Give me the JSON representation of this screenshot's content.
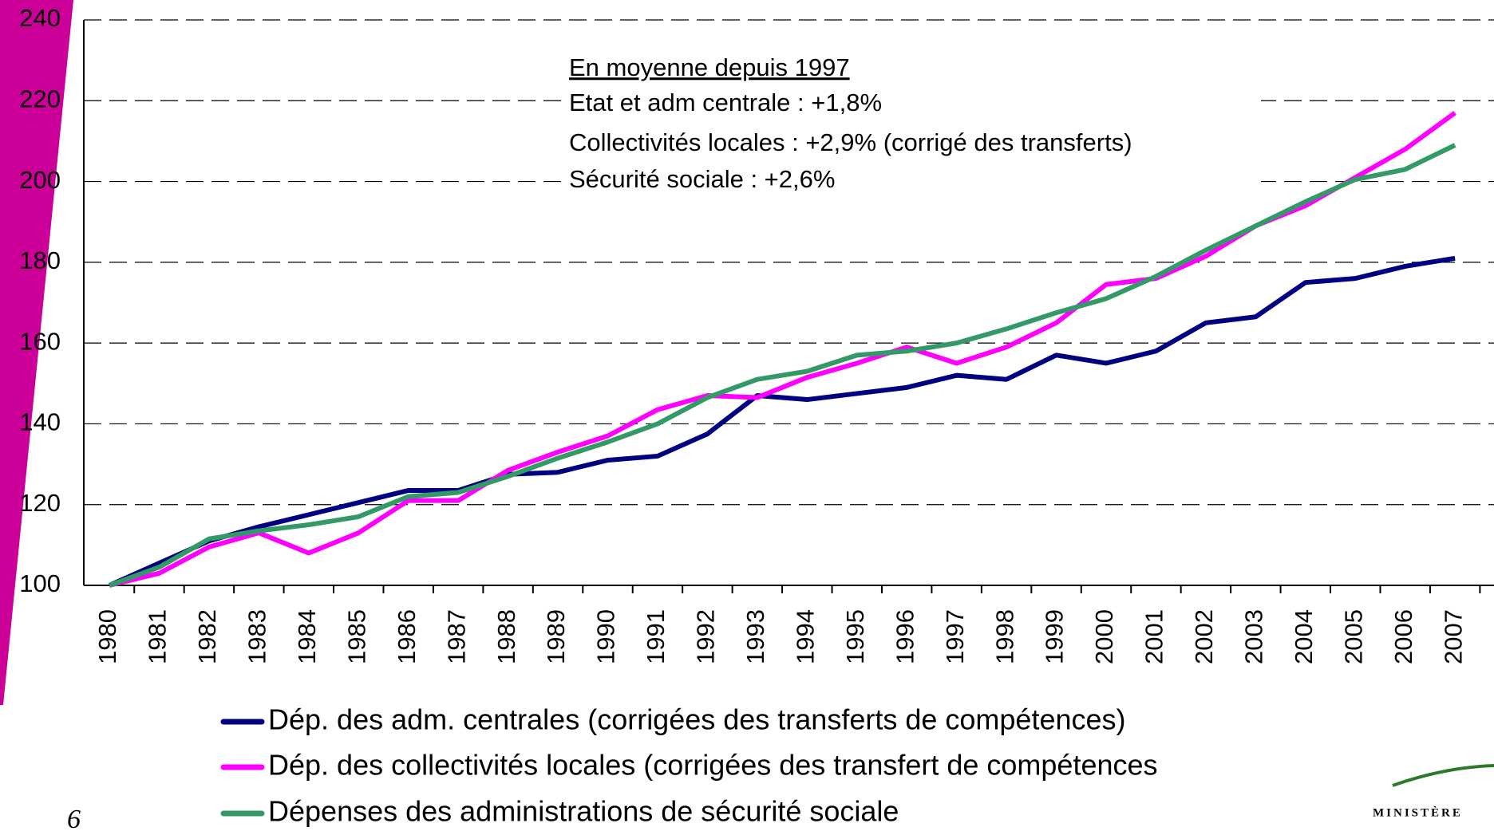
{
  "chart_data": {
    "type": "line",
    "annotations": [
      "En moyenne depuis 1997",
      "Etat et adm centrale : +1,8%",
      "Collectivités locales : +2,9% (corrigé des transferts)",
      "Sécurité sociale : +2,6%"
    ],
    "categories": [
      "1980",
      "1981",
      "1982",
      "1983",
      "1984",
      "1985",
      "1986",
      "1987",
      "1988",
      "1989",
      "1990",
      "1991",
      "1992",
      "1993",
      "1994",
      "1995",
      "1996",
      "1997",
      "1998",
      "1999",
      "2000",
      "2001",
      "2002",
      "2003",
      "2004",
      "2005",
      "2006",
      "2007"
    ],
    "series": [
      {
        "name": "Dép. des adm. centrales (corrigées des transferts de compétences)",
        "color": "#000080",
        "values": [
          100,
          105.5,
          111,
          114.5,
          117.5,
          120.5,
          123.5,
          123.5,
          127.5,
          128,
          131,
          132,
          137.5,
          147,
          146,
          147.5,
          149,
          152,
          151,
          157,
          155,
          158,
          165,
          166.5,
          175,
          176,
          179,
          181
        ]
      },
      {
        "name": "Dép. des collectivités locales (corrigées des transfert de compétences",
        "color": "#ff00ff",
        "values": [
          100,
          103,
          109.5,
          113,
          108,
          113,
          121,
          121,
          128.5,
          133,
          137,
          143.5,
          147,
          146.5,
          151.5,
          155,
          159,
          155,
          159,
          165,
          174.5,
          176,
          181.5,
          189,
          194,
          201,
          208,
          217
        ]
      },
      {
        "name": "Dépenses des administrations de sécurité sociale",
        "color": "#339966",
        "values": [
          100,
          104.5,
          111.5,
          113.5,
          115,
          117,
          122,
          123,
          127,
          131.5,
          135.5,
          140,
          146.5,
          151,
          153,
          157,
          158,
          160,
          163.5,
          167.5,
          171,
          176.5,
          183,
          189,
          195,
          200.5,
          203,
          209
        ]
      }
    ],
    "ylim": [
      100,
      240
    ],
    "yticks": [
      100,
      120,
      140,
      160,
      180,
      200,
      220,
      240
    ],
    "grid": true,
    "page_number": "6",
    "logo_text": "MINISTÈRE"
  }
}
